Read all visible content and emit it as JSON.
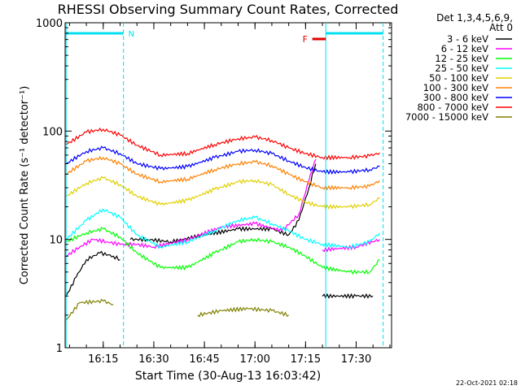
{
  "chart_data": {
    "type": "line",
    "title": "RHESSI Observing Summary Count Rates, Corrected",
    "xlabel": "Start Time (30-Aug-13 16:03:42)",
    "ylabel": "Corrected Count Rate (s⁻¹ detector⁻¹)",
    "xlim": [
      "16:03:42",
      "17:40:30"
    ],
    "ylim": [
      1,
      1000
    ],
    "yscale": "log",
    "x_ticks": [
      "16:15",
      "16:30",
      "16:45",
      "17:00",
      "17:15",
      "17:30"
    ],
    "y_ticks": [
      "1",
      "10",
      "100",
      "1000"
    ],
    "legend": {
      "header": [
        "Det 1,3,4,5,6,9,",
        "Att 0"
      ],
      "placement": "right"
    },
    "annotations": {
      "night_label": "N",
      "flare_label": "F",
      "footer": "22-Oct-2021 02:18"
    },
    "colors": {
      "night_marker": "#00e0f0",
      "flare_marker": "#e00000"
    },
    "series": [
      {
        "name": "3 - 6 keV",
        "color": "#000000",
        "points": [
          [
            "16:04",
            3.0
          ],
          [
            "16:07",
            4.5
          ],
          [
            "16:10",
            6.5
          ],
          [
            "16:14",
            7.5
          ],
          [
            "16:18",
            7.0
          ],
          [
            "16:20",
            6.5
          ],
          [
            "16:21",
            null
          ],
          [
            "16:23",
            10
          ],
          [
            "16:28",
            10
          ],
          [
            "16:35",
            9.5
          ],
          [
            "16:45",
            11
          ],
          [
            "16:55",
            12.5
          ],
          [
            "17:05",
            12.5
          ],
          [
            "17:10",
            11
          ],
          [
            "17:13",
            15
          ],
          [
            "17:16",
            30
          ],
          [
            "17:18",
            50
          ],
          [
            "17:20",
            null
          ],
          [
            "17:20",
            3.0
          ],
          [
            "17:30",
            3.0
          ],
          [
            "17:35",
            3.0
          ]
        ]
      },
      {
        "name": "6 - 12 keV",
        "color": "#ff00ff",
        "points": [
          [
            "16:04",
            7.0
          ],
          [
            "16:08",
            8.5
          ],
          [
            "16:12",
            10
          ],
          [
            "16:16",
            9.5
          ],
          [
            "16:20",
            9.0
          ],
          [
            "16:25",
            9.0
          ],
          [
            "16:30",
            8.5
          ],
          [
            "16:40",
            10
          ],
          [
            "16:50",
            13
          ],
          [
            "17:00",
            14
          ],
          [
            "17:08",
            12
          ],
          [
            "17:13",
            17
          ],
          [
            "17:16",
            35
          ],
          [
            "17:18",
            55
          ],
          [
            "17:20",
            null
          ],
          [
            "17:20",
            8.0
          ],
          [
            "17:30",
            8.5
          ],
          [
            "17:37",
            10
          ]
        ]
      },
      {
        "name": "12 - 25 keV",
        "color": "#00ff00",
        "points": [
          [
            "16:04",
            9.5
          ],
          [
            "16:10",
            11.5
          ],
          [
            "16:15",
            12.5
          ],
          [
            "16:20",
            10.5
          ],
          [
            "16:25",
            7.5
          ],
          [
            "16:32",
            5.5
          ],
          [
            "16:40",
            5.5
          ],
          [
            "16:48",
            7.5
          ],
          [
            "16:55",
            9.5
          ],
          [
            "17:00",
            10
          ],
          [
            "17:05",
            9.5
          ],
          [
            "17:10",
            8.5
          ],
          [
            "17:15",
            7.0
          ],
          [
            "17:20",
            5.5
          ],
          [
            "17:28",
            5.0
          ],
          [
            "17:34",
            5.0
          ],
          [
            "17:37",
            6.5
          ]
        ]
      },
      {
        "name": "25 - 50 keV",
        "color": "#00ffff",
        "points": [
          [
            "16:04",
            10
          ],
          [
            "16:10",
            15
          ],
          [
            "16:15",
            19
          ],
          [
            "16:20",
            16
          ],
          [
            "16:25",
            11
          ],
          [
            "16:32",
            8.5
          ],
          [
            "16:40",
            9.5
          ],
          [
            "16:48",
            12
          ],
          [
            "16:55",
            15
          ],
          [
            "17:00",
            16
          ],
          [
            "17:05",
            14
          ],
          [
            "17:10",
            12
          ],
          [
            "17:15",
            10
          ],
          [
            "17:20",
            9.0
          ],
          [
            "17:28",
            8.5
          ],
          [
            "17:34",
            9.5
          ],
          [
            "17:37",
            11.5
          ]
        ]
      },
      {
        "name": "50 - 100 keV",
        "color": "#e0d000",
        "points": [
          [
            "16:04",
            25
          ],
          [
            "16:10",
            33
          ],
          [
            "16:15",
            37
          ],
          [
            "16:20",
            32
          ],
          [
            "16:25",
            25
          ],
          [
            "16:32",
            21
          ],
          [
            "16:40",
            23
          ],
          [
            "16:48",
            29
          ],
          [
            "16:55",
            34
          ],
          [
            "17:00",
            35
          ],
          [
            "17:05",
            32
          ],
          [
            "17:10",
            26
          ],
          [
            "17:15",
            22
          ],
          [
            "17:20",
            20
          ],
          [
            "17:28",
            20
          ],
          [
            "17:34",
            21
          ],
          [
            "17:37",
            24
          ]
        ]
      },
      {
        "name": "100 - 300 keV",
        "color": "#ff8000",
        "points": [
          [
            "16:04",
            40
          ],
          [
            "16:10",
            53
          ],
          [
            "16:15",
            57
          ],
          [
            "16:20",
            50
          ],
          [
            "16:25",
            40
          ],
          [
            "16:32",
            34
          ],
          [
            "16:40",
            36
          ],
          [
            "16:48",
            44
          ],
          [
            "16:55",
            50
          ],
          [
            "17:00",
            52
          ],
          [
            "17:05",
            48
          ],
          [
            "17:10",
            40
          ],
          [
            "17:15",
            34
          ],
          [
            "17:20",
            30
          ],
          [
            "17:28",
            30
          ],
          [
            "17:34",
            31
          ],
          [
            "17:37",
            35
          ]
        ]
      },
      {
        "name": "300 - 800 keV",
        "color": "#0000ff",
        "points": [
          [
            "16:04",
            50
          ],
          [
            "16:10",
            65
          ],
          [
            "16:15",
            70
          ],
          [
            "16:20",
            62
          ],
          [
            "16:25",
            50
          ],
          [
            "16:32",
            45
          ],
          [
            "16:40",
            47
          ],
          [
            "16:48",
            57
          ],
          [
            "16:55",
            65
          ],
          [
            "17:00",
            67
          ],
          [
            "17:05",
            62
          ],
          [
            "17:10",
            53
          ],
          [
            "17:15",
            46
          ],
          [
            "17:20",
            42
          ],
          [
            "17:28",
            42
          ],
          [
            "17:34",
            44
          ],
          [
            "17:37",
            47
          ]
        ]
      },
      {
        "name": "800 - 7000 keV",
        "color": "#ff0000",
        "points": [
          [
            "16:04",
            75
          ],
          [
            "16:10",
            98
          ],
          [
            "16:15",
            104
          ],
          [
            "16:20",
            92
          ],
          [
            "16:25",
            74
          ],
          [
            "16:32",
            60
          ],
          [
            "16:40",
            62
          ],
          [
            "16:48",
            75
          ],
          [
            "16:55",
            85
          ],
          [
            "17:00",
            88
          ],
          [
            "17:05",
            82
          ],
          [
            "17:10",
            70
          ],
          [
            "17:15",
            62
          ],
          [
            "17:20",
            57
          ],
          [
            "17:28",
            57
          ],
          [
            "17:34",
            59
          ],
          [
            "17:37",
            63
          ]
        ]
      },
      {
        "name": "7000 - 15000 keV",
        "color": "#808000",
        "points": [
          [
            "16:04",
            1.8
          ],
          [
            "16:08",
            2.6
          ],
          [
            "16:15",
            2.7
          ],
          [
            "16:18",
            2.5
          ],
          [
            "16:20",
            null
          ],
          [
            "16:43",
            2.0
          ],
          [
            "16:50",
            2.2
          ],
          [
            "16:58",
            2.3
          ],
          [
            "17:05",
            2.2
          ],
          [
            "17:10",
            2.0
          ]
        ]
      }
    ]
  }
}
